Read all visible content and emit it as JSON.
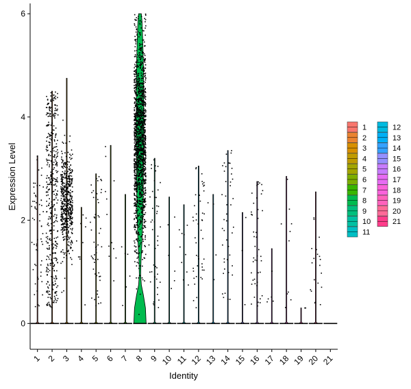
{
  "chart_data": {
    "type": "violin",
    "xlabel": "Identity",
    "ylabel": "Expression Level",
    "ylim": [
      -0.5,
      6.2
    ],
    "yticks": [
      0,
      2,
      4,
      6
    ],
    "categories": [
      "1",
      "2",
      "3",
      "4",
      "5",
      "6",
      "7",
      "8",
      "9",
      "10",
      "11",
      "12",
      "13",
      "14",
      "15",
      "16",
      "17",
      "18",
      "19",
      "20",
      "21"
    ],
    "colors": [
      "#F8766D",
      "#EA8331",
      "#D89000",
      "#C09B00",
      "#A3A500",
      "#7CAE00",
      "#39B600",
      "#00BB4E",
      "#00BF7D",
      "#00C1A3",
      "#00BFC4",
      "#00BAE0",
      "#00B0F6",
      "#35A2FF",
      "#9590FF",
      "#C77CFF",
      "#E76BF3",
      "#FA62DB",
      "#FF62BC",
      "#FF6A98",
      "#FF3D8B"
    ],
    "series": [
      {
        "category": "1",
        "max": 3.25,
        "jitter_points": 60,
        "median_expr": 0
      },
      {
        "category": "2",
        "max": 4.5,
        "jitter_points": 420,
        "median_expr": 0
      },
      {
        "category": "3",
        "max": 4.75,
        "jitter_points": 520,
        "median_expr": 2.3
      },
      {
        "category": "4",
        "max": 2.25,
        "jitter_points": 10,
        "median_expr": 0
      },
      {
        "category": "5",
        "max": 2.9,
        "jitter_points": 55,
        "median_expr": 0
      },
      {
        "category": "6",
        "max": 3.45,
        "jitter_points": 12,
        "median_expr": 0
      },
      {
        "category": "7",
        "max": 2.5,
        "jitter_points": 6,
        "median_expr": 0
      },
      {
        "category": "8",
        "max": 6.0,
        "jitter_points": 1600,
        "median_expr": 3.5
      },
      {
        "category": "9",
        "max": 3.2,
        "jitter_points": 45,
        "median_expr": 0
      },
      {
        "category": "10",
        "max": 2.45,
        "jitter_points": 6,
        "median_expr": 0
      },
      {
        "category": "11",
        "max": 2.3,
        "jitter_points": 10,
        "median_expr": 0
      },
      {
        "category": "12",
        "max": 3.05,
        "jitter_points": 45,
        "median_expr": 0
      },
      {
        "category": "13",
        "max": 2.5,
        "jitter_points": 4,
        "median_expr": 0
      },
      {
        "category": "14",
        "max": 3.35,
        "jitter_points": 45,
        "median_expr": 0
      },
      {
        "category": "15",
        "max": 2.15,
        "jitter_points": 3,
        "median_expr": 0
      },
      {
        "category": "16",
        "max": 2.75,
        "jitter_points": 45,
        "median_expr": 0
      },
      {
        "category": "17",
        "max": 1.45,
        "jitter_points": 5,
        "median_expr": 0
      },
      {
        "category": "18",
        "max": 2.85,
        "jitter_points": 10,
        "median_expr": 0
      },
      {
        "category": "19",
        "max": 0.3,
        "jitter_points": 2,
        "median_expr": 0
      },
      {
        "category": "20",
        "max": 2.55,
        "jitter_points": 20,
        "median_expr": 0
      },
      {
        "category": "21",
        "max": 0.0,
        "jitter_points": 0,
        "median_expr": 0
      }
    ]
  }
}
